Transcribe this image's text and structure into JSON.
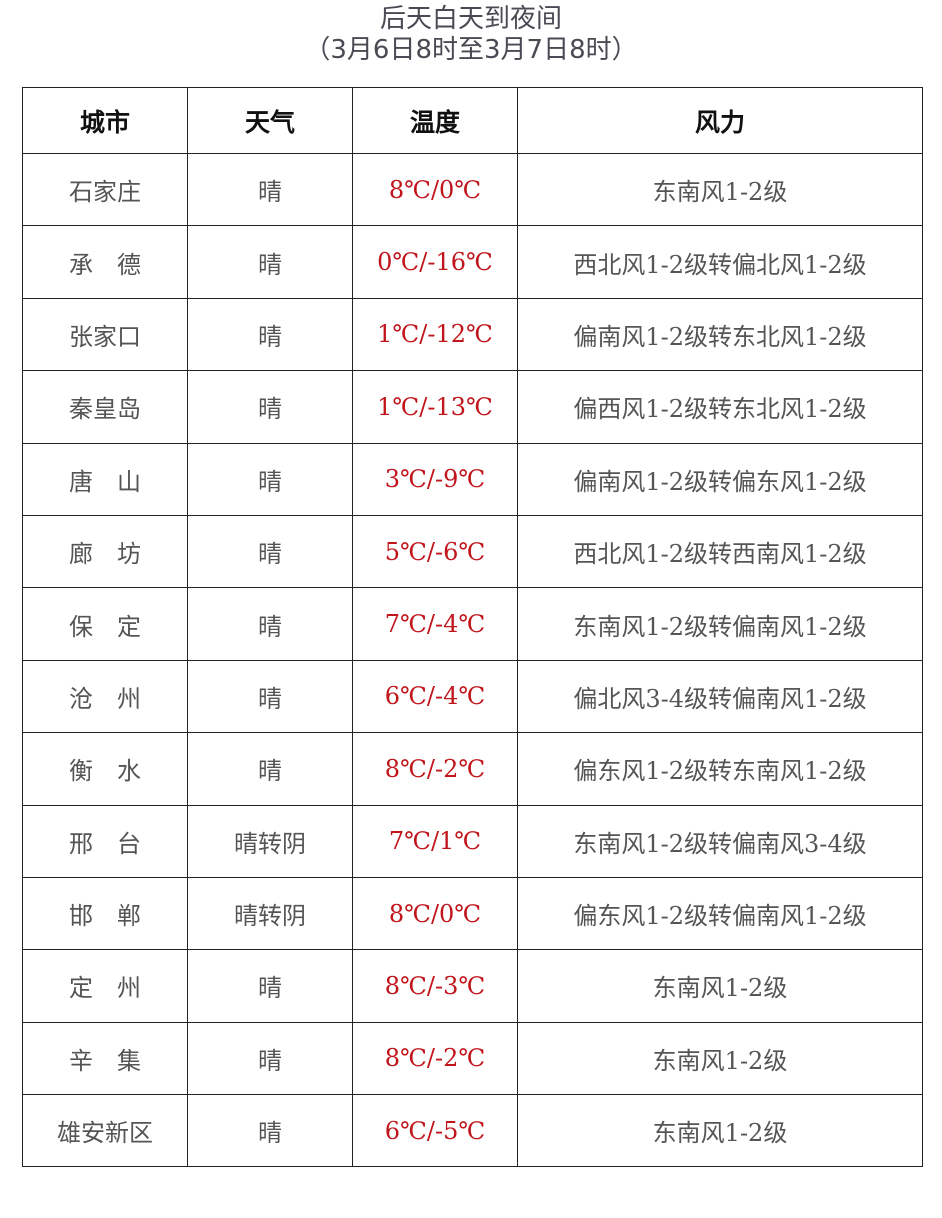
{
  "title": "后天白天到夜间",
  "subtitle": "（3月6日8时至3月7日8时）",
  "table": {
    "headers": [
      "城市",
      "天气",
      "温度",
      "风力"
    ],
    "rows": [
      [
        "石家庄",
        "晴",
        "8℃/0℃",
        "东南风1-2级"
      ],
      [
        "承　德",
        "晴",
        "0℃/-16℃",
        "西北风1-2级转偏北风1-2级"
      ],
      [
        "张家口",
        "晴",
        "1℃/-12℃",
        "偏南风1-2级转东北风1-2级"
      ],
      [
        "秦皇岛",
        "晴",
        "1℃/-13℃",
        "偏西风1-2级转东北风1-2级"
      ],
      [
        "唐　山",
        "晴",
        "3℃/-9℃",
        "偏南风1-2级转偏东风1-2级"
      ],
      [
        "廊　坊",
        "晴",
        "5℃/-6℃",
        "西北风1-2级转西南风1-2级"
      ],
      [
        "保　定",
        "晴",
        "7℃/-4℃",
        "东南风1-2级转偏南风1-2级"
      ],
      [
        "沧　州",
        "晴",
        "6℃/-4℃",
        "偏北风3-4级转偏南风1-2级"
      ],
      [
        "衡　水",
        "晴",
        "8℃/-2℃",
        "偏东风1-2级转东南风1-2级"
      ],
      [
        "邢　台",
        "晴转阴",
        "7℃/1℃",
        "东南风1-2级转偏南风3-4级"
      ],
      [
        "邯　郸",
        "晴转阴",
        "8℃/0℃",
        "偏东风1-2级转偏南风1-2级"
      ],
      [
        "定　州",
        "晴",
        "8℃/-3℃",
        "东南风1-2级"
      ],
      [
        "辛　集",
        "晴",
        "8℃/-2℃",
        "东南风1-2级"
      ],
      [
        "雄安新区",
        "晴",
        "6℃/-5℃",
        "东南风1-2级"
      ]
    ]
  },
  "colors": {
    "temperature": "#c0151b",
    "text": "#555555",
    "header": "#111111"
  }
}
